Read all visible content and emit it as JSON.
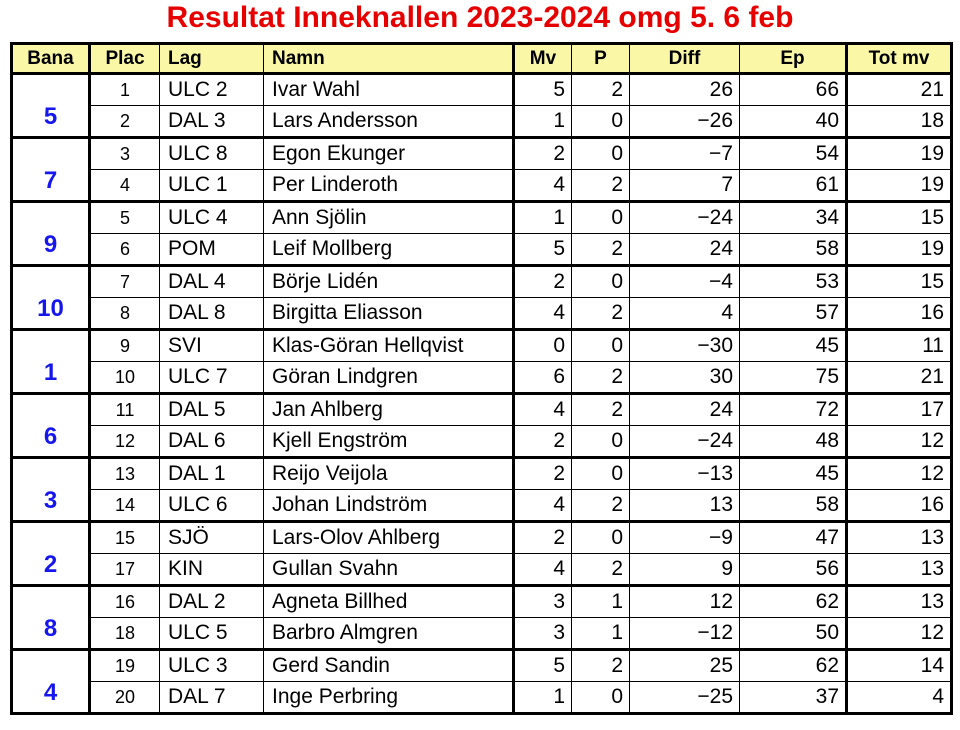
{
  "title": "Resultat Inneknallen 2023-2024 omg 5. 6 feb",
  "colors": {
    "title_red": "#e60000",
    "header_bg": "#faf8a6",
    "bana_blue": "#1616ee",
    "grid": "#000000"
  },
  "table": {
    "columns": [
      {
        "key": "bana",
        "label": "Bana"
      },
      {
        "key": "plac",
        "label": "Plac"
      },
      {
        "key": "lag",
        "label": "Lag"
      },
      {
        "key": "namn",
        "label": "Namn"
      },
      {
        "key": "mv",
        "label": "Mv"
      },
      {
        "key": "p",
        "label": "P"
      },
      {
        "key": "diff",
        "label": "Diff"
      },
      {
        "key": "ep",
        "label": "Ep"
      },
      {
        "key": "totmv",
        "label": "Tot mv"
      }
    ],
    "groups": [
      {
        "bana": "5",
        "rows": [
          {
            "plac": "1",
            "lag": "ULC 2",
            "namn": "Ivar Wahl",
            "mv": "5",
            "p": "2",
            "diff": "26",
            "ep": "66",
            "totmv": "21"
          },
          {
            "plac": "2",
            "lag": "DAL 3",
            "namn": "Lars Andersson",
            "mv": "1",
            "p": "0",
            "diff": "−26",
            "ep": "40",
            "totmv": "18"
          }
        ]
      },
      {
        "bana": "7",
        "rows": [
          {
            "plac": "3",
            "lag": "ULC 8",
            "namn": "Egon Ekunger",
            "mv": "2",
            "p": "0",
            "diff": "−7",
            "ep": "54",
            "totmv": "19"
          },
          {
            "plac": "4",
            "lag": "ULC 1",
            "namn": "Per Linderoth",
            "mv": "4",
            "p": "2",
            "diff": "7",
            "ep": "61",
            "totmv": "19"
          }
        ]
      },
      {
        "bana": "9",
        "rows": [
          {
            "plac": "5",
            "lag": "ULC 4",
            "namn": "Ann Sjölin",
            "mv": "1",
            "p": "0",
            "diff": "−24",
            "ep": "34",
            "totmv": "15"
          },
          {
            "plac": "6",
            "lag": "POM",
            "namn": "Leif Mollberg",
            "mv": "5",
            "p": "2",
            "diff": "24",
            "ep": "58",
            "totmv": "19"
          }
        ]
      },
      {
        "bana": "10",
        "rows": [
          {
            "plac": "7",
            "lag": "DAL 4",
            "namn": "Börje Lidén",
            "mv": "2",
            "p": "0",
            "diff": "−4",
            "ep": "53",
            "totmv": "15"
          },
          {
            "plac": "8",
            "lag": "DAL 8",
            "namn": "Birgitta Eliasson",
            "mv": "4",
            "p": "2",
            "diff": "4",
            "ep": "57",
            "totmv": "16"
          }
        ]
      },
      {
        "bana": "1",
        "rows": [
          {
            "plac": "9",
            "lag": "SVI",
            "namn": "Klas-Göran Hellqvist",
            "mv": "0",
            "p": "0",
            "diff": "−30",
            "ep": "45",
            "totmv": "11"
          },
          {
            "plac": "10",
            "lag": "ULC 7",
            "namn": "Göran Lindgren",
            "mv": "6",
            "p": "2",
            "diff": "30",
            "ep": "75",
            "totmv": "21"
          }
        ]
      },
      {
        "bana": "6",
        "rows": [
          {
            "plac": "11",
            "lag": "DAL 5",
            "namn": "Jan Ahlberg",
            "mv": "4",
            "p": "2",
            "diff": "24",
            "ep": "72",
            "totmv": "17"
          },
          {
            "plac": "12",
            "lag": "DAL 6",
            "namn": "Kjell Engström",
            "mv": "2",
            "p": "0",
            "diff": "−24",
            "ep": "48",
            "totmv": "12"
          }
        ]
      },
      {
        "bana": "3",
        "rows": [
          {
            "plac": "13",
            "lag": "DAL 1",
            "namn": "Reijo Veijola",
            "mv": "2",
            "p": "0",
            "diff": "−13",
            "ep": "45",
            "totmv": "12"
          },
          {
            "plac": "14",
            "lag": "ULC 6",
            "namn": "Johan Lindström",
            "mv": "4",
            "p": "2",
            "diff": "13",
            "ep": "58",
            "totmv": "16"
          }
        ]
      },
      {
        "bana": "2",
        "rows": [
          {
            "plac": "15",
            "lag": "SJÖ",
            "namn": "Lars-Olov Ahlberg",
            "mv": "2",
            "p": "0",
            "diff": "−9",
            "ep": "47",
            "totmv": "13"
          },
          {
            "plac": "17",
            "lag": "KIN",
            "namn": "Gullan Svahn",
            "mv": "4",
            "p": "2",
            "diff": "9",
            "ep": "56",
            "totmv": "13"
          }
        ]
      },
      {
        "bana": "8",
        "rows": [
          {
            "plac": "16",
            "lag": "DAL 2",
            "namn": "Agneta Billhed",
            "mv": "3",
            "p": "1",
            "diff": "12",
            "ep": "62",
            "totmv": "13"
          },
          {
            "plac": "18",
            "lag": "ULC 5",
            "namn": "Barbro Almgren",
            "mv": "3",
            "p": "1",
            "diff": "−12",
            "ep": "50",
            "totmv": "12"
          }
        ]
      },
      {
        "bana": "4",
        "rows": [
          {
            "plac": "19",
            "lag": "ULC 3",
            "namn": "Gerd Sandin",
            "mv": "5",
            "p": "2",
            "diff": "25",
            "ep": "62",
            "totmv": "14"
          },
          {
            "plac": "20",
            "lag": "DAL 7",
            "namn": "Inge Perbring",
            "mv": "1",
            "p": "0",
            "diff": "−25",
            "ep": "37",
            "totmv": "4"
          }
        ]
      }
    ]
  }
}
